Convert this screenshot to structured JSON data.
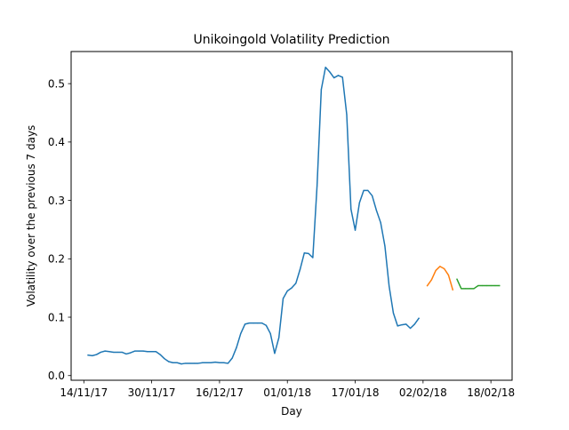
{
  "chart_data": {
    "type": "line",
    "title": "Unikoingold Volatility Prediction",
    "xlabel": "Day",
    "ylabel": "Volatility over the previous 7 days",
    "xlim": [
      "2017-11-11",
      "2018-02-23"
    ],
    "ylim": [
      -0.008,
      0.555
    ],
    "grid": false,
    "x_ticks": [
      {
        "date": "2017-11-14",
        "label": "14/11/17"
      },
      {
        "date": "2017-11-30",
        "label": "30/11/17"
      },
      {
        "date": "2017-12-16",
        "label": "16/12/17"
      },
      {
        "date": "2018-01-01",
        "label": "01/01/18"
      },
      {
        "date": "2018-01-17",
        "label": "17/01/18"
      },
      {
        "date": "2018-02-02",
        "label": "02/02/18"
      },
      {
        "date": "2018-02-18",
        "label": "18/02/18"
      }
    ],
    "y_ticks": [
      {
        "value": 0.0,
        "label": "0.0"
      },
      {
        "value": 0.1,
        "label": "0.1"
      },
      {
        "value": 0.2,
        "label": "0.2"
      },
      {
        "value": 0.3,
        "label": "0.3"
      },
      {
        "value": 0.4,
        "label": "0.4"
      },
      {
        "value": 0.5,
        "label": "0.5"
      }
    ],
    "series": [
      {
        "color": "#1f77b4",
        "points": [
          [
            "2017-11-15",
            0.035
          ],
          [
            "2017-11-16",
            0.034
          ],
          [
            "2017-11-17",
            0.036
          ],
          [
            "2017-11-18",
            0.04
          ],
          [
            "2017-11-19",
            0.042
          ],
          [
            "2017-11-20",
            0.041
          ],
          [
            "2017-11-21",
            0.04
          ],
          [
            "2017-11-22",
            0.04
          ],
          [
            "2017-11-23",
            0.04
          ],
          [
            "2017-11-24",
            0.037
          ],
          [
            "2017-11-25",
            0.039
          ],
          [
            "2017-11-26",
            0.042
          ],
          [
            "2017-11-27",
            0.042
          ],
          [
            "2017-11-28",
            0.042
          ],
          [
            "2017-11-29",
            0.041
          ],
          [
            "2017-11-30",
            0.041
          ],
          [
            "2017-12-01",
            0.041
          ],
          [
            "2017-12-02",
            0.036
          ],
          [
            "2017-12-03",
            0.029
          ],
          [
            "2017-12-04",
            0.024
          ],
          [
            "2017-12-05",
            0.022
          ],
          [
            "2017-12-06",
            0.022
          ],
          [
            "2017-12-07",
            0.02
          ],
          [
            "2017-12-08",
            0.021
          ],
          [
            "2017-12-09",
            0.021
          ],
          [
            "2017-12-10",
            0.021
          ],
          [
            "2017-12-11",
            0.021
          ],
          [
            "2017-12-12",
            0.022
          ],
          [
            "2017-12-13",
            0.022
          ],
          [
            "2017-12-14",
            0.022
          ],
          [
            "2017-12-15",
            0.023
          ],
          [
            "2017-12-16",
            0.022
          ],
          [
            "2017-12-17",
            0.022
          ],
          [
            "2017-12-18",
            0.021
          ],
          [
            "2017-12-19",
            0.03
          ],
          [
            "2017-12-20",
            0.048
          ],
          [
            "2017-12-21",
            0.072
          ],
          [
            "2017-12-22",
            0.088
          ],
          [
            "2017-12-23",
            0.09
          ],
          [
            "2017-12-24",
            0.09
          ],
          [
            "2017-12-25",
            0.09
          ],
          [
            "2017-12-26",
            0.09
          ],
          [
            "2017-12-27",
            0.086
          ],
          [
            "2017-12-28",
            0.072
          ],
          [
            "2017-12-29",
            0.038
          ],
          [
            "2017-12-30",
            0.065
          ],
          [
            "2017-12-31",
            0.132
          ],
          [
            "2018-01-01",
            0.145
          ],
          [
            "2018-01-02",
            0.15
          ],
          [
            "2018-01-03",
            0.158
          ],
          [
            "2018-01-04",
            0.182
          ],
          [
            "2018-01-05",
            0.21
          ],
          [
            "2018-01-06",
            0.209
          ],
          [
            "2018-01-07",
            0.202
          ],
          [
            "2018-01-08",
            0.325
          ],
          [
            "2018-01-09",
            0.49
          ],
          [
            "2018-01-10",
            0.528
          ],
          [
            "2018-01-11",
            0.52
          ],
          [
            "2018-01-12",
            0.51
          ],
          [
            "2018-01-13",
            0.514
          ],
          [
            "2018-01-14",
            0.511
          ],
          [
            "2018-01-15",
            0.447
          ],
          [
            "2018-01-16",
            0.285
          ],
          [
            "2018-01-17",
            0.249
          ],
          [
            "2018-01-18",
            0.296
          ],
          [
            "2018-01-19",
            0.317
          ],
          [
            "2018-01-20",
            0.317
          ],
          [
            "2018-01-21",
            0.308
          ],
          [
            "2018-01-22",
            0.283
          ],
          [
            "2018-01-23",
            0.262
          ],
          [
            "2018-01-24",
            0.222
          ],
          [
            "2018-01-25",
            0.153
          ],
          [
            "2018-01-26",
            0.107
          ],
          [
            "2018-01-27",
            0.085
          ],
          [
            "2018-01-28",
            0.087
          ],
          [
            "2018-01-29",
            0.088
          ],
          [
            "2018-01-30",
            0.081
          ],
          [
            "2018-01-31",
            0.088
          ],
          [
            "2018-02-01",
            0.098
          ]
        ]
      },
      {
        "color": "#ff7f0e",
        "points": [
          [
            "2018-02-03",
            0.154
          ],
          [
            "2018-02-04",
            0.164
          ],
          [
            "2018-02-05",
            0.18
          ],
          [
            "2018-02-06",
            0.187
          ],
          [
            "2018-02-07",
            0.183
          ],
          [
            "2018-02-08",
            0.172
          ],
          [
            "2018-02-09",
            0.147
          ]
        ]
      },
      {
        "color": "#2ca02c",
        "points": [
          [
            "2018-02-10",
            0.165
          ],
          [
            "2018-02-11",
            0.149
          ],
          [
            "2018-02-12",
            0.149
          ],
          [
            "2018-02-13",
            0.149
          ],
          [
            "2018-02-14",
            0.149
          ],
          [
            "2018-02-15",
            0.154
          ],
          [
            "2018-02-16",
            0.154
          ],
          [
            "2018-02-17",
            0.154
          ],
          [
            "2018-02-18",
            0.154
          ],
          [
            "2018-02-19",
            0.154
          ],
          [
            "2018-02-20",
            0.154
          ]
        ]
      }
    ]
  }
}
